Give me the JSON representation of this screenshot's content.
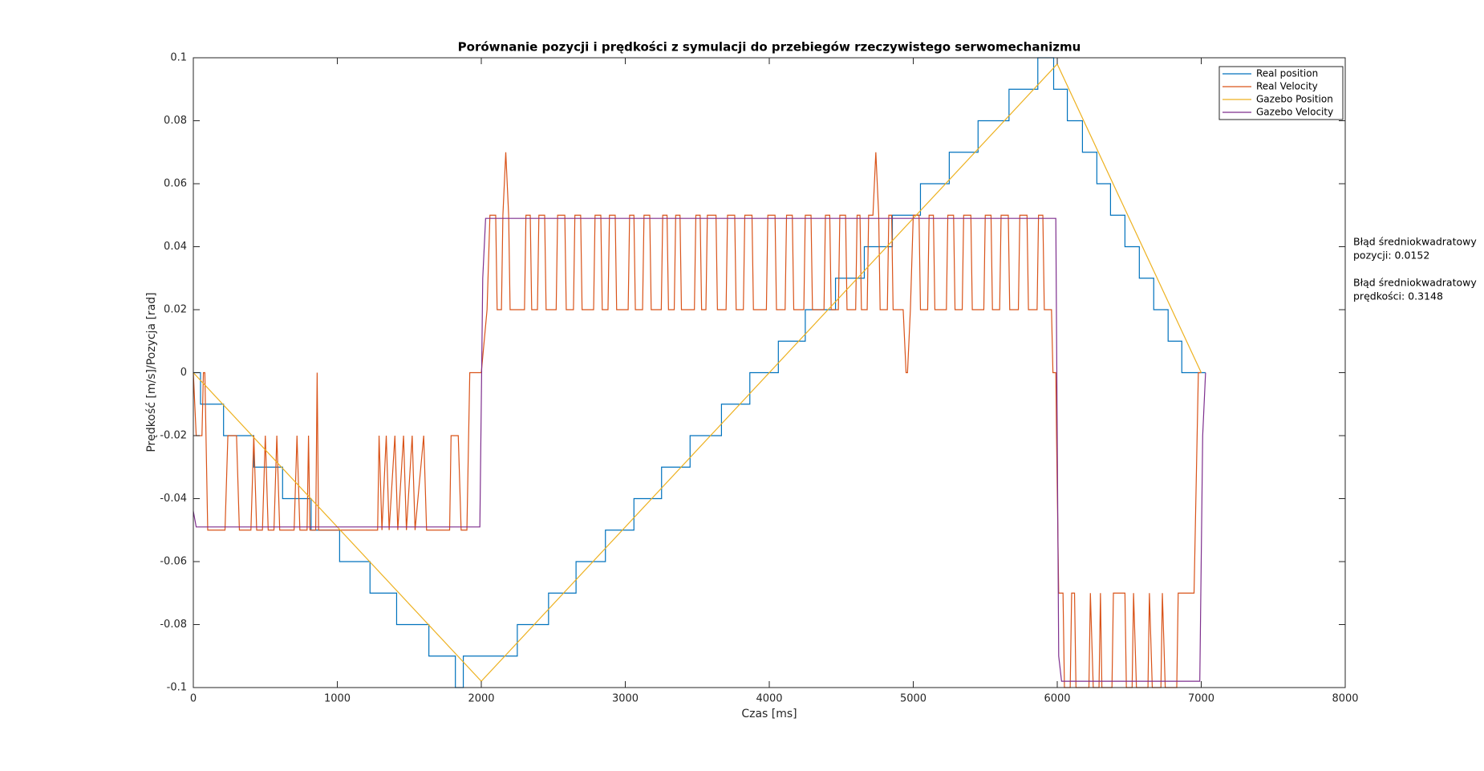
{
  "chart_data": {
    "type": "line",
    "title": "Porównanie pozycji i prędkości z symulacji do przebiegów rzeczywistego serwomechanizmu",
    "x_label": "Czas [ms]",
    "y_label": "Prędkość [m/s]/Pozycja [rad]",
    "xlim": [
      0,
      8000
    ],
    "xticks": [
      0,
      1000,
      2000,
      3000,
      4000,
      5000,
      6000,
      7000,
      8000
    ],
    "ylim": [
      -0.1,
      0.1
    ],
    "yticks": [
      -0.1,
      -0.08,
      -0.06,
      -0.04,
      -0.02,
      0,
      0.02,
      0.04,
      0.06,
      0.08,
      0.1
    ],
    "grid": false,
    "legend_position": "upper-right",
    "annotations": [
      {
        "lines": [
          "Błąd średniokwadratowy",
          "pozycji: 0.0152"
        ]
      },
      {
        "lines": [
          "Błąd średniokwadratowy",
          "prędkości: 0.3148"
        ]
      }
    ],
    "series": [
      {
        "name": "Real position",
        "color": "#0072bd",
        "x": [
          0,
          50,
          50,
          210,
          210,
          420,
          420,
          620,
          620,
          818,
          818,
          1016,
          1016,
          1227,
          1227,
          1412,
          1412,
          1636,
          1636,
          1820,
          1820,
          1875,
          1875,
          2250,
          2250,
          2467,
          2467,
          2658,
          2658,
          2862,
          2862,
          3060,
          3060,
          3252,
          3252,
          3450,
          3450,
          3668,
          3668,
          3865,
          3865,
          4063,
          4063,
          4250,
          4250,
          4460,
          4460,
          4660,
          4660,
          4855,
          4855,
          5050,
          5050,
          5250,
          5250,
          5450,
          5450,
          5665,
          5665,
          5865,
          5865,
          5975,
          5975,
          6070,
          6070,
          6175,
          6175,
          6275,
          6275,
          6370,
          6370,
          6470,
          6470,
          6570,
          6570,
          6670,
          6670,
          6770,
          6770,
          6865,
          6865,
          7030
        ],
        "values": [
          0,
          0,
          -0.01,
          -0.01,
          -0.02,
          -0.02,
          -0.03,
          -0.03,
          -0.04,
          -0.04,
          -0.05,
          -0.05,
          -0.06,
          -0.06,
          -0.07,
          -0.07,
          -0.08,
          -0.08,
          -0.09,
          -0.09,
          -0.1,
          -0.1,
          -0.09,
          -0.09,
          -0.08,
          -0.08,
          -0.07,
          -0.07,
          -0.06,
          -0.06,
          -0.05,
          -0.05,
          -0.04,
          -0.04,
          -0.03,
          -0.03,
          -0.02,
          -0.02,
          -0.01,
          -0.01,
          0,
          0,
          0.01,
          0.01,
          0.02,
          0.02,
          0.03,
          0.03,
          0.04,
          0.04,
          0.05,
          0.05,
          0.06,
          0.06,
          0.07,
          0.07,
          0.08,
          0.08,
          0.09,
          0.09,
          0.1,
          0.1,
          0.09,
          0.09,
          0.08,
          0.08,
          0.07,
          0.07,
          0.06,
          0.06,
          0.05,
          0.05,
          0.04,
          0.04,
          0.03,
          0.03,
          0.02,
          0.02,
          0.01,
          0.01,
          0,
          0
        ]
      },
      {
        "name": "Real Velocity",
        "color": "#d95319",
        "x": [
          0,
          20,
          60,
          70,
          80,
          100,
          220,
          240,
          300,
          320,
          400,
          420,
          440,
          480,
          500,
          520,
          560,
          580,
          600,
          700,
          720,
          740,
          790,
          800,
          810,
          850,
          860,
          870,
          1280,
          1290,
          1310,
          1340,
          1360,
          1400,
          1420,
          1460,
          1480,
          1520,
          1540,
          1600,
          1620,
          1780,
          1790,
          1840,
          1860,
          1900,
          1920,
          2000,
          2040,
          2060,
          2100,
          2110,
          2140,
          2150,
          2170,
          2190,
          2200,
          2300,
          2310,
          2340,
          2350,
          2390,
          2400,
          2440,
          2450,
          2520,
          2530,
          2580,
          2590,
          2640,
          2650,
          2690,
          2700,
          2780,
          2790,
          2830,
          2840,
          2880,
          2890,
          2930,
          2940,
          3020,
          3030,
          3060,
          3070,
          3120,
          3130,
          3170,
          3180,
          3250,
          3260,
          3290,
          3300,
          3340,
          3350,
          3380,
          3390,
          3480,
          3490,
          3520,
          3530,
          3560,
          3570,
          3630,
          3640,
          3700,
          3710,
          3760,
          3770,
          3820,
          3830,
          3880,
          3890,
          3980,
          3990,
          4040,
          4050,
          4110,
          4120,
          4160,
          4170,
          4240,
          4250,
          4290,
          4300,
          4380,
          4390,
          4420,
          4430,
          4480,
          4490,
          4530,
          4540,
          4600,
          4610,
          4630,
          4640,
          4680,
          4690,
          4720,
          4740,
          4760,
          4770,
          4820,
          4830,
          4850,
          4860,
          4930,
          4950,
          4960,
          4980,
          5000,
          5040,
          5050,
          5100,
          5110,
          5140,
          5150,
          5230,
          5240,
          5280,
          5290,
          5340,
          5350,
          5400,
          5410,
          5490,
          5500,
          5540,
          5550,
          5600,
          5610,
          5660,
          5670,
          5730,
          5740,
          5790,
          5800,
          5860,
          5870,
          5900,
          5910,
          5960,
          5970,
          5990,
          5995,
          6010,
          6040,
          6050,
          6090,
          6100,
          6120,
          6130,
          6220,
          6230,
          6250,
          6290,
          6300,
          6310,
          6380,
          6390,
          6470,
          6480,
          6520,
          6530,
          6550,
          6630,
          6640,
          6660,
          6720,
          6730,
          6750,
          6830,
          6840,
          6950,
          6980,
          7000
        ],
        "values": [
          0,
          -0.02,
          -0.02,
          0,
          0,
          -0.05,
          -0.05,
          -0.02,
          -0.02,
          -0.05,
          -0.05,
          -0.02,
          -0.05,
          -0.05,
          -0.02,
          -0.05,
          -0.05,
          -0.02,
          -0.05,
          -0.05,
          -0.02,
          -0.05,
          -0.05,
          -0.02,
          -0.05,
          -0.05,
          0,
          -0.05,
          -0.05,
          -0.02,
          -0.05,
          -0.02,
          -0.05,
          -0.02,
          -0.05,
          -0.02,
          -0.05,
          -0.02,
          -0.05,
          -0.02,
          -0.05,
          -0.05,
          -0.02,
          -0.02,
          -0.05,
          -0.05,
          0,
          0,
          0.02,
          0.05,
          0.05,
          0.02,
          0.02,
          0.05,
          0.07,
          0.05,
          0.02,
          0.02,
          0.05,
          0.05,
          0.02,
          0.02,
          0.05,
          0.05,
          0.02,
          0.02,
          0.05,
          0.05,
          0.02,
          0.02,
          0.05,
          0.05,
          0.02,
          0.02,
          0.05,
          0.05,
          0.02,
          0.02,
          0.05,
          0.05,
          0.02,
          0.02,
          0.05,
          0.05,
          0.02,
          0.02,
          0.05,
          0.05,
          0.02,
          0.02,
          0.05,
          0.05,
          0.02,
          0.02,
          0.05,
          0.05,
          0.02,
          0.02,
          0.05,
          0.05,
          0.02,
          0.02,
          0.05,
          0.05,
          0.02,
          0.02,
          0.05,
          0.05,
          0.02,
          0.02,
          0.05,
          0.05,
          0.02,
          0.02,
          0.05,
          0.05,
          0.02,
          0.02,
          0.05,
          0.05,
          0.02,
          0.02,
          0.05,
          0.05,
          0.02,
          0.02,
          0.05,
          0.05,
          0.02,
          0.02,
          0.05,
          0.05,
          0.02,
          0.02,
          0.05,
          0.05,
          0.02,
          0.02,
          0.05,
          0.05,
          0.07,
          0.05,
          0.02,
          0.02,
          0.05,
          0.05,
          0.02,
          0.02,
          0,
          0,
          0.02,
          0.05,
          0.05,
          0.02,
          0.02,
          0.05,
          0.05,
          0.02,
          0.02,
          0.05,
          0.05,
          0.02,
          0.02,
          0.05,
          0.05,
          0.02,
          0.02,
          0.05,
          0.05,
          0.02,
          0.02,
          0.05,
          0.05,
          0.02,
          0.02,
          0.05,
          0.05,
          0.02,
          0.02,
          0.05,
          0.05,
          0.02,
          0.02,
          0,
          0,
          -0.02,
          -0.07,
          -0.07,
          -0.1,
          -0.1,
          -0.07,
          -0.07,
          -0.1,
          -0.1,
          -0.07,
          -0.1,
          -0.1,
          -0.07,
          -0.1,
          -0.1,
          -0.07,
          -0.07,
          -0.1,
          -0.1,
          -0.07,
          -0.1,
          -0.1,
          -0.07,
          -0.1,
          -0.1,
          -0.07,
          -0.1,
          -0.1,
          -0.07,
          -0.07,
          0,
          0
        ]
      },
      {
        "name": "Gazebo Position",
        "color": "#edb120",
        "x": [
          0,
          2000,
          6000,
          7000
        ],
        "values": [
          0,
          -0.098,
          0.098,
          0
        ]
      },
      {
        "name": "Gazebo Velocity",
        "color": "#7e2f8e",
        "x": [
          0,
          20,
          1990,
          2010,
          2030,
          5990,
          6010,
          6030,
          6990,
          7010,
          7030
        ],
        "values": [
          -0.044,
          -0.049,
          -0.049,
          0.03,
          0.049,
          0.049,
          -0.09,
          -0.098,
          -0.098,
          -0.02,
          0
        ]
      }
    ]
  }
}
